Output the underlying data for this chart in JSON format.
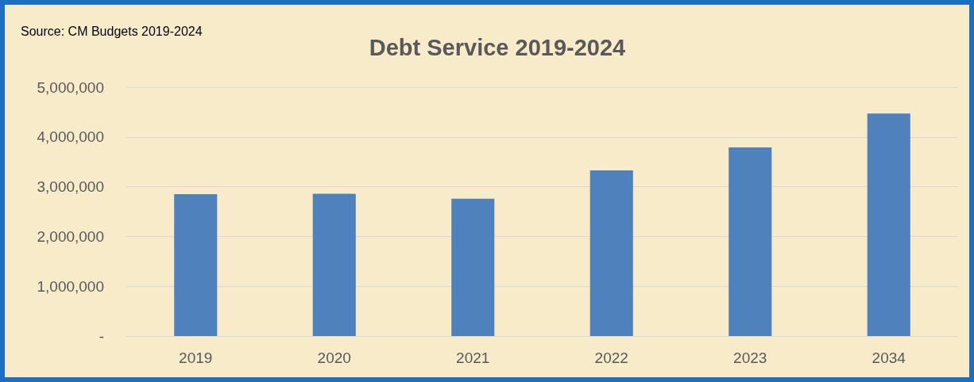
{
  "chart_data": {
    "type": "bar",
    "title": "Debt Service 2019-2024",
    "annotations": [
      "Source: CM Budgets 2019-2024"
    ],
    "categories": [
      "2019",
      "2020",
      "2021",
      "2022",
      "2023",
      "2034"
    ],
    "values": [
      2850000,
      2860000,
      2760000,
      3330000,
      3790000,
      4470000
    ],
    "color": "#4f81bd",
    "ylim": [
      0,
      5000000
    ],
    "yticks": [
      {
        "value": 0,
        "label": "-"
      },
      {
        "value": 1000000,
        "label": "1,000,000"
      },
      {
        "value": 2000000,
        "label": "2,000,000"
      },
      {
        "value": 3000000,
        "label": "3,000,000"
      },
      {
        "value": 4000000,
        "label": "4,000,000"
      },
      {
        "value": 5000000,
        "label": "5,000,000"
      }
    ],
    "grid": "y"
  }
}
